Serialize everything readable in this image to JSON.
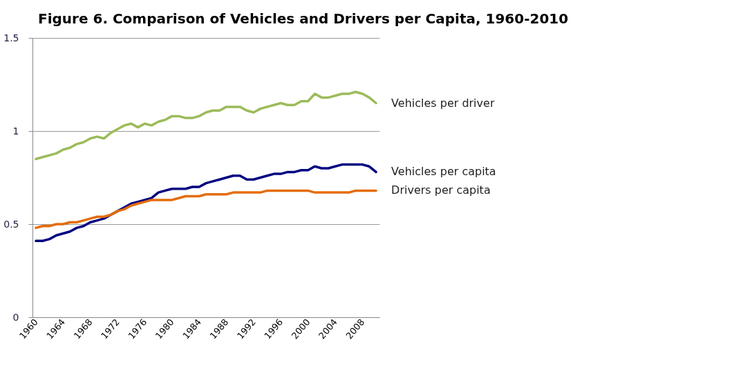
{
  "chart_data": {
    "type": "line",
    "title": "Figure 6. Comparison of Vehicles and Drivers per Capita, 1960-2010",
    "categories": [
      "1960",
      null,
      null,
      null,
      "1964",
      null,
      null,
      null,
      "1968",
      null,
      null,
      null,
      "1972",
      null,
      null,
      null,
      "1976",
      null,
      null,
      null,
      "1980",
      null,
      null,
      null,
      "1984",
      null,
      null,
      null,
      "1988",
      null,
      null,
      null,
      "1992",
      null,
      null,
      null,
      "1996",
      null,
      null,
      null,
      "2000",
      null,
      null,
      null,
      "2004",
      null,
      null,
      null,
      "2008",
      null,
      null
    ],
    "series": [
      {
        "name": "Vehicles per driver",
        "color": "#9bbb59",
        "values": [
          0.85,
          0.86,
          0.87,
          0.88,
          0.9,
          0.91,
          0.93,
          0.94,
          0.96,
          0.97,
          0.96,
          0.99,
          1.01,
          1.03,
          1.04,
          1.02,
          1.04,
          1.03,
          1.05,
          1.06,
          1.08,
          1.08,
          1.07,
          1.07,
          1.08,
          1.1,
          1.11,
          1.11,
          1.13,
          1.13,
          1.13,
          1.11,
          1.1,
          1.12,
          1.13,
          1.14,
          1.15,
          1.14,
          1.14,
          1.16,
          1.16,
          1.2,
          1.18,
          1.18,
          1.19,
          1.2,
          1.2,
          1.21,
          1.2,
          1.18,
          1.15
        ]
      },
      {
        "name": "Vehicles per capita",
        "color": "#000080",
        "values": [
          0.41,
          0.41,
          0.42,
          0.44,
          0.45,
          0.46,
          0.48,
          0.49,
          0.51,
          0.52,
          0.53,
          0.55,
          0.57,
          0.59,
          0.61,
          0.62,
          0.63,
          0.64,
          0.67,
          0.68,
          0.69,
          0.69,
          0.69,
          0.7,
          0.7,
          0.72,
          0.73,
          0.74,
          0.75,
          0.76,
          0.76,
          0.74,
          0.74,
          0.75,
          0.76,
          0.77,
          0.77,
          0.78,
          0.78,
          0.79,
          0.79,
          0.81,
          0.8,
          0.8,
          0.81,
          0.82,
          0.82,
          0.82,
          0.82,
          0.81,
          0.78
        ]
      },
      {
        "name": "Drivers per capita",
        "color": "#e46c0a",
        "values": [
          0.48,
          0.49,
          0.49,
          0.5,
          0.5,
          0.51,
          0.51,
          0.52,
          0.53,
          0.54,
          0.54,
          0.55,
          0.57,
          0.58,
          0.6,
          0.61,
          0.62,
          0.63,
          0.63,
          0.63,
          0.63,
          0.64,
          0.65,
          0.65,
          0.65,
          0.66,
          0.66,
          0.66,
          0.66,
          0.67,
          0.67,
          0.67,
          0.67,
          0.67,
          0.68,
          0.68,
          0.68,
          0.68,
          0.68,
          0.68,
          0.68,
          0.67,
          0.67,
          0.67,
          0.67,
          0.67,
          0.67,
          0.68,
          0.68,
          0.68,
          0.68
        ]
      }
    ],
    "ylim": [
      0,
      1.5
    ],
    "yticks": [
      {
        "value": 0,
        "label": "0"
      },
      0.5,
      {
        "value": 1,
        "label": "1"
      },
      1.5
    ],
    "grid": "y",
    "legend": false
  }
}
